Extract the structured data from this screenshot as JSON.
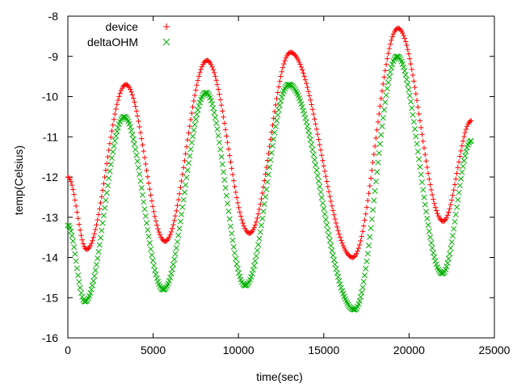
{
  "chart_data": {
    "type": "scatter",
    "title": "",
    "xlabel": "time(sec)",
    "ylabel": "temp(Celsius)",
    "xlim": [
      0,
      25000
    ],
    "ylim": [
      -16,
      -8
    ],
    "x_ticks": [
      0,
      5000,
      10000,
      15000,
      20000,
      25000
    ],
    "x_tick_labels": [
      "0",
      "5000",
      "10000",
      "15000",
      "20000",
      "25000"
    ],
    "y_ticks": [
      -16,
      -15,
      -14,
      -13,
      -12,
      -11,
      -10,
      -9,
      -8
    ],
    "y_tick_labels": [
      "-16",
      "-15",
      "-14",
      "-13",
      "-12",
      "-11",
      "-10",
      "-9",
      "-8"
    ],
    "grid": false,
    "legend_position": "top-left",
    "sample_interval": 60,
    "series": [
      {
        "name": "device",
        "marker": "plus",
        "color": "#ff0000",
        "keypoints": [
          [
            0,
            -12.0
          ],
          [
            1100,
            -13.8
          ],
          [
            3400,
            -9.7
          ],
          [
            5700,
            -13.6
          ],
          [
            8150,
            -9.1
          ],
          [
            10650,
            -13.4
          ],
          [
            13050,
            -8.9
          ],
          [
            16700,
            -14.0
          ],
          [
            19350,
            -8.3
          ],
          [
            22000,
            -13.1
          ],
          [
            23650,
            -10.6
          ]
        ]
      },
      {
        "name": "deltaOHM",
        "marker": "cross",
        "color": "#00b000",
        "keypoints": [
          [
            0,
            -13.2
          ],
          [
            1000,
            -15.1
          ],
          [
            3300,
            -10.5
          ],
          [
            5600,
            -14.8
          ],
          [
            8100,
            -9.9
          ],
          [
            10400,
            -14.7
          ],
          [
            12950,
            -9.7
          ],
          [
            16800,
            -15.3
          ],
          [
            19300,
            -9.0
          ],
          [
            21950,
            -14.4
          ],
          [
            23650,
            -11.1
          ]
        ]
      }
    ]
  }
}
